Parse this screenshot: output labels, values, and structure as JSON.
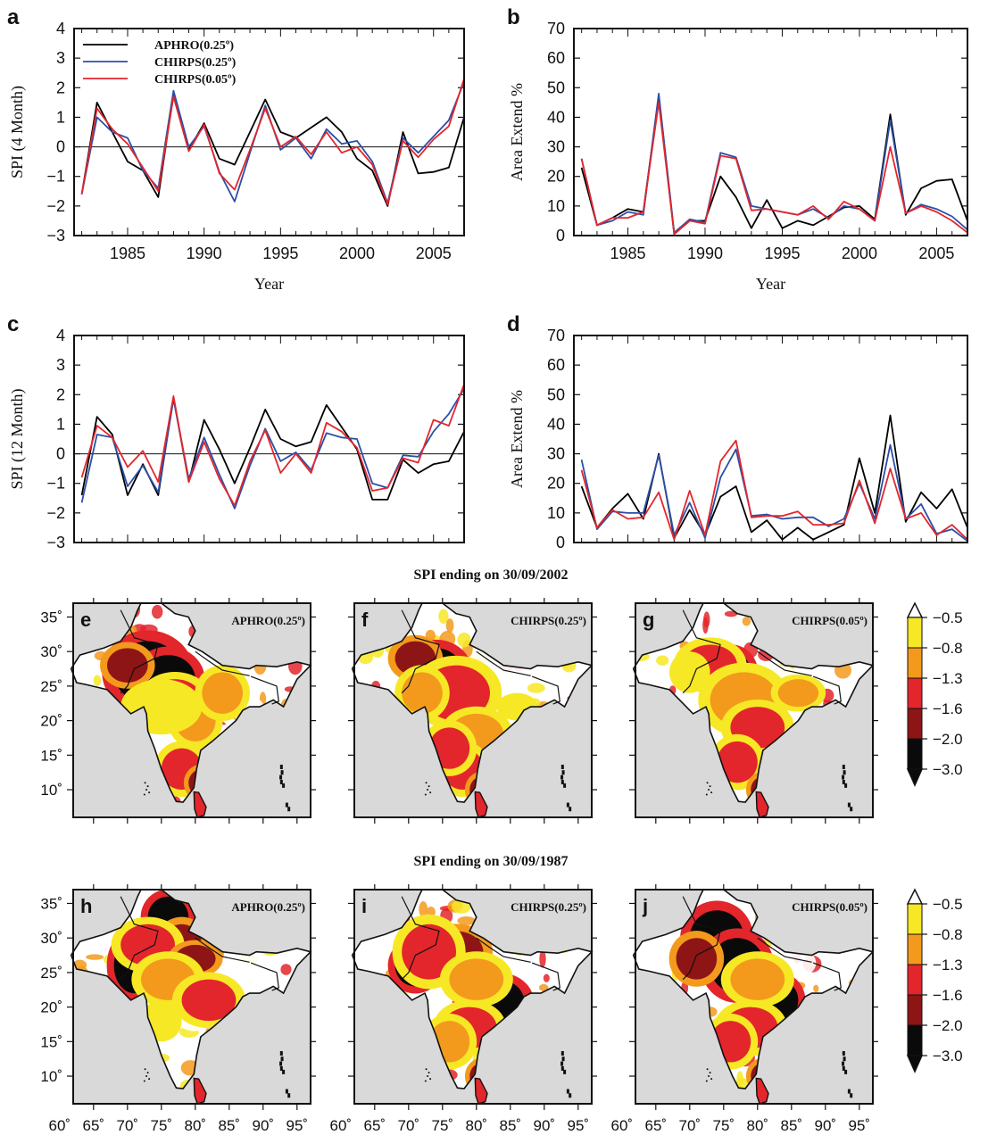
{
  "chart_data": [
    {
      "panel": "a",
      "type": "line",
      "ylabel": "SPI (4 Month)",
      "xlabel": "Year",
      "xlim": [
        1981.5,
        2007
      ],
      "ylim": [
        -3,
        4
      ],
      "yticks": [
        -3,
        -2,
        -1,
        0,
        1,
        2,
        3,
        4
      ],
      "xticks": [
        1985,
        1990,
        1995,
        2000,
        2005
      ],
      "zero_line": true,
      "legend_position": "top-left",
      "x": [
        1982,
        1983,
        1984,
        1985,
        1986,
        1987,
        1988,
        1989,
        1990,
        1991,
        1992,
        1993,
        1994,
        1995,
        1996,
        1997,
        1998,
        1999,
        2000,
        2001,
        2002,
        2003,
        2004,
        2005,
        2006,
        2007
      ],
      "series": [
        {
          "name": "APHRO(0.25º)",
          "color": "#000000",
          "values": [
            -1.6,
            1.5,
            0.5,
            -0.5,
            -0.8,
            -1.7,
            1.8,
            -0.1,
            0.8,
            -0.4,
            -0.6,
            0.5,
            1.6,
            0.5,
            0.3,
            0.65,
            1.0,
            0.5,
            -0.4,
            -0.8,
            -2.0,
            0.5,
            -0.9,
            -0.85,
            -0.7,
            1.0
          ]
        },
        {
          "name": "CHIRPS(0.25º)",
          "color": "#2b4fa8",
          "values": [
            -1.6,
            1.0,
            0.5,
            0.3,
            -0.8,
            -1.4,
            1.9,
            0.0,
            0.7,
            -0.85,
            -1.85,
            -0.2,
            1.4,
            -0.1,
            0.3,
            -0.4,
            0.6,
            0.1,
            0.2,
            -0.5,
            -1.9,
            0.3,
            -0.2,
            0.35,
            0.9,
            2.2
          ]
        },
        {
          "name": "CHIRPS(0.05º)",
          "color": "#e3262b",
          "values": [
            -1.6,
            1.3,
            0.6,
            0.1,
            -0.7,
            -1.5,
            1.7,
            -0.15,
            0.75,
            -0.9,
            -1.45,
            -0.1,
            1.3,
            0.0,
            0.35,
            -0.25,
            0.5,
            -0.2,
            0.0,
            -0.6,
            -1.95,
            0.2,
            -0.35,
            0.25,
            0.7,
            2.3
          ]
        }
      ]
    },
    {
      "panel": "b",
      "type": "line",
      "ylabel": "Area Extend %",
      "xlabel": "Year",
      "xlim": [
        1981.5,
        2007
      ],
      "ylim": [
        0,
        70
      ],
      "yticks": [
        0,
        10,
        20,
        30,
        40,
        50,
        60,
        70
      ],
      "xticks": [
        1985,
        1990,
        1995,
        2000,
        2005
      ],
      "x": [
        1982,
        1983,
        1984,
        1985,
        1986,
        1987,
        1988,
        1989,
        1990,
        1991,
        1992,
        1993,
        1994,
        1995,
        1996,
        1997,
        1998,
        1999,
        2000,
        2001,
        2002,
        2003,
        2004,
        2005,
        2006,
        2007
      ],
      "series": [
        {
          "name": "APHRO(0.25º)",
          "color": "#000000",
          "values": [
            23,
            3.5,
            6,
            9,
            8,
            47,
            0.5,
            5,
            5,
            20,
            13,
            2.5,
            12,
            2.5,
            5,
            3.5,
            6.5,
            9.5,
            10,
            5.5,
            41,
            7,
            16,
            18.5,
            19,
            5
          ]
        },
        {
          "name": "CHIRPS(0.25º)",
          "color": "#2b4fa8",
          "values": [
            26,
            3.5,
            5,
            8,
            7,
            48,
            1,
            5.5,
            4.5,
            28,
            26.5,
            10,
            9,
            8,
            7,
            9,
            6,
            10,
            9,
            5,
            39,
            7.5,
            10.5,
            9,
            6.5,
            2
          ]
        },
        {
          "name": "CHIRPS(0.05º)",
          "color": "#e3262b",
          "values": [
            26,
            3.5,
            6,
            6,
            8,
            45,
            0.5,
            5,
            4,
            27,
            26,
            8.5,
            9,
            8,
            7,
            10,
            5.5,
            11.5,
            9,
            5,
            30,
            7.5,
            10,
            8,
            5,
            1
          ]
        }
      ]
    },
    {
      "panel": "c",
      "type": "line",
      "ylabel": "SPI (12 Month)",
      "xlabel": "",
      "xlim": [
        1981.5,
        2007
      ],
      "ylim": [
        -3,
        4
      ],
      "yticks": [
        -3,
        -2,
        -1,
        0,
        1,
        2,
        3,
        4
      ],
      "xticks": [],
      "zero_line": true,
      "x": [
        1982,
        1983,
        1984,
        1985,
        1986,
        1987,
        1988,
        1989,
        1990,
        1991,
        1992,
        1993,
        1994,
        1995,
        1996,
        1997,
        1998,
        1999,
        2000,
        2001,
        2002,
        2003,
        2004,
        2005,
        2006,
        2007
      ],
      "series": [
        {
          "name": "APHRO(0.25º)",
          "color": "#000000",
          "values": [
            -1.4,
            1.25,
            0.65,
            -1.4,
            -0.35,
            -1.4,
            1.9,
            -0.95,
            1.15,
            0.15,
            -1.0,
            0.2,
            1.5,
            0.5,
            0.25,
            0.4,
            1.65,
            0.9,
            0.15,
            -1.55,
            -1.55,
            -0.2,
            -0.65,
            -0.35,
            -0.25,
            0.75
          ]
        },
        {
          "name": "CHIRPS(0.25º)",
          "color": "#2b4fa8",
          "values": [
            -1.65,
            0.65,
            0.55,
            -1.1,
            -0.4,
            -1.3,
            1.85,
            -0.85,
            0.55,
            -0.7,
            -1.85,
            -0.4,
            0.85,
            -0.25,
            0.05,
            -0.55,
            0.7,
            0.55,
            0.5,
            -1.0,
            -1.15,
            -0.05,
            -0.1,
            0.75,
            1.35,
            2.2
          ]
        },
        {
          "name": "CHIRPS(0.05º)",
          "color": "#e3262b",
          "values": [
            -0.8,
            0.95,
            0.55,
            -0.45,
            0.1,
            -0.95,
            1.95,
            -0.95,
            0.4,
            -0.85,
            -1.75,
            -0.25,
            0.8,
            -0.65,
            0.0,
            -0.65,
            1.05,
            0.75,
            0.2,
            -1.25,
            -1.15,
            -0.15,
            -0.3,
            1.15,
            0.95,
            2.35
          ]
        }
      ]
    },
    {
      "panel": "d",
      "type": "line",
      "ylabel": "Area Extend %",
      "xlabel": "",
      "xlim": [
        1981.5,
        2007
      ],
      "ylim": [
        0,
        70
      ],
      "yticks": [
        0,
        10,
        20,
        30,
        40,
        50,
        60,
        70
      ],
      "xticks": [],
      "x": [
        1982,
        1983,
        1984,
        1985,
        1986,
        1987,
        1988,
        1989,
        1990,
        1991,
        1992,
        1993,
        1994,
        1995,
        1996,
        1997,
        1998,
        1999,
        2000,
        2001,
        2002,
        2003,
        2004,
        2005,
        2006,
        2007
      ],
      "series": [
        {
          "name": "APHRO(0.25º)",
          "color": "#000000",
          "values": [
            19,
            5,
            11.5,
            16.5,
            8,
            30,
            1.5,
            11,
            2.5,
            15.5,
            19,
            3.5,
            7.5,
            1,
            5,
            1,
            3.5,
            6,
            28.5,
            10,
            43,
            7,
            17,
            11.5,
            18,
            5
          ]
        },
        {
          "name": "CHIRPS(0.25º)",
          "color": "#2b4fa8",
          "values": [
            28,
            4.5,
            10.5,
            10,
            10,
            29.5,
            2.5,
            13.5,
            1.5,
            22,
            31.5,
            9,
            9.5,
            8,
            8.5,
            8.5,
            5.5,
            8,
            20,
            8,
            33,
            8,
            13,
            3,
            4.5,
            0.5
          ]
        },
        {
          "name": "CHIRPS(0.05º)",
          "color": "#e3262b",
          "values": [
            24.5,
            5,
            11,
            8,
            8.5,
            17,
            1,
            17.5,
            2.5,
            27.5,
            34.5,
            8.5,
            9,
            9,
            10.5,
            6,
            6,
            6.5,
            21,
            6.5,
            25,
            8,
            10,
            2.5,
            6,
            1
          ]
        }
      ]
    },
    {
      "type": "heatmap",
      "row_titles": [
        "SPI ending on 30/09/2002",
        "SPI ending on 30/09/1987"
      ],
      "panels": [
        {
          "panel": "e",
          "dataset": "APHRO(0.25º)"
        },
        {
          "panel": "f",
          "dataset": "CHIRPS(0.25º)"
        },
        {
          "panel": "g",
          "dataset": "CHIRPS(0.05º)"
        },
        {
          "panel": "h",
          "dataset": "APHRO(0.25º)"
        },
        {
          "panel": "i",
          "dataset": "CHIRPS(0.25º)"
        },
        {
          "panel": "j",
          "dataset": "CHIRPS(0.05º)"
        }
      ],
      "lat_ticks": [
        "10˚",
        "15˚",
        "20˚",
        "25˚",
        "30˚",
        "35˚"
      ],
      "lon_ticks": [
        "60˚",
        "65˚",
        "70˚",
        "75˚",
        "80˚",
        "85˚",
        "90˚",
        "95˚"
      ],
      "colorbar": {
        "levels": [
          "-0.5",
          "-0.8",
          "-1.3",
          "-1.6",
          "-2.0",
          "-3.0"
        ],
        "colors": [
          "#f7e825",
          "#f39a1d",
          "#e3262b",
          "#8e1516",
          "#0a0a0a"
        ]
      }
    }
  ]
}
